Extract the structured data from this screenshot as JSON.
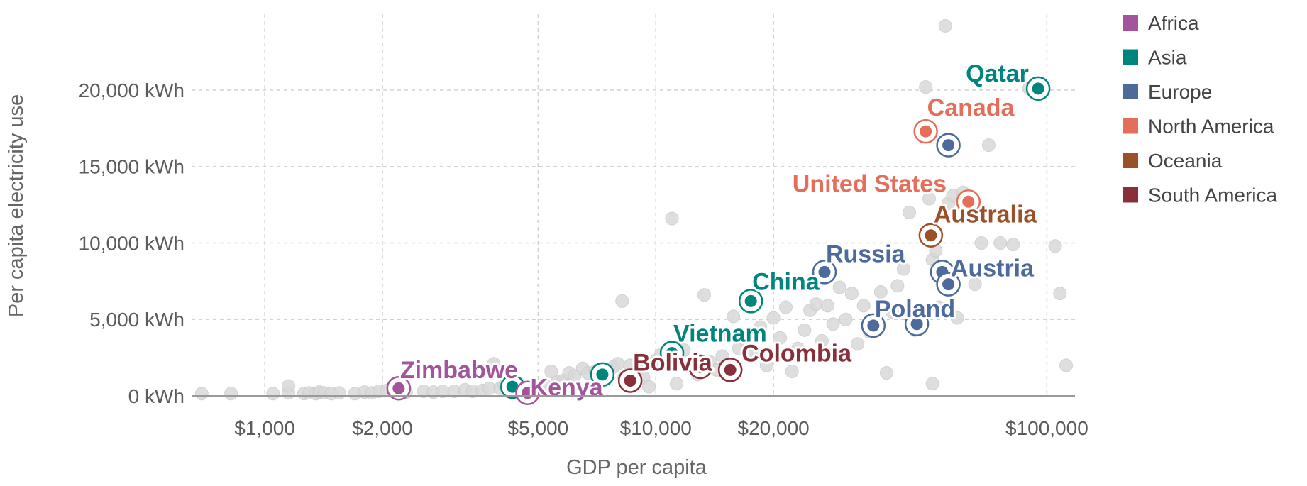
{
  "chart_data": {
    "type": "scatter",
    "title": "",
    "xlabel": "GDP per capita",
    "ylabel": "Per capita electricity use",
    "x_scale": "log",
    "xlim": [
      650,
      118000
    ],
    "ylim": [
      0,
      24500
    ],
    "x_ticks": [
      1000,
      2000,
      5000,
      10000,
      20000,
      100000
    ],
    "x_tick_labels": [
      "$1,000",
      "$2,000",
      "$5,000",
      "$10,000",
      "$20,000",
      "$100,000"
    ],
    "y_ticks": [
      0,
      5000,
      10000,
      15000,
      20000
    ],
    "y_tick_labels": [
      "0 kWh",
      "5,000 kWh",
      "10,000 kWh",
      "15,000 kWh",
      "20,000 kWh"
    ],
    "grid": true,
    "legend_position": "right",
    "colors": {
      "Africa": "#a2559c",
      "Asia": "#00847e",
      "Europe": "#4c6a9c",
      "North America": "#e56e5a",
      "Oceania": "#9a5129",
      "South America": "#883039",
      "other": "#d9d9d9"
    },
    "legend": [
      "Africa",
      "Asia",
      "Europe",
      "North America",
      "Oceania",
      "South America"
    ],
    "highlighted": [
      {
        "label": "Qatar",
        "region": "Asia",
        "x": 95000,
        "y": 20100
      },
      {
        "label": "Canada",
        "region": "North America",
        "x": 49000,
        "y": 17300
      },
      {
        "label": "",
        "region": "Europe",
        "x": 56000,
        "y": 16400
      },
      {
        "label": "United States",
        "region": "North America",
        "x": 63000,
        "y": 12700
      },
      {
        "label": "Australia",
        "region": "Oceania",
        "x": 50500,
        "y": 10500
      },
      {
        "label": "Russia",
        "region": "Europe",
        "x": 27000,
        "y": 8100
      },
      {
        "label": "Austria",
        "region": "Europe",
        "x": 54000,
        "y": 8100
      },
      {
        "label": "",
        "region": "Europe",
        "x": 56000,
        "y": 7300
      },
      {
        "label": "China",
        "region": "Asia",
        "x": 17500,
        "y": 6200
      },
      {
        "label": "Poland",
        "region": "Europe",
        "x": 36000,
        "y": 4600
      },
      {
        "label": "",
        "region": "Europe",
        "x": 46500,
        "y": 4700
      },
      {
        "label": "Vietnam",
        "region": "Asia",
        "x": 11000,
        "y": 2800
      },
      {
        "label": "",
        "region": "South America",
        "x": 15500,
        "y": 1700
      },
      {
        "label": "Colombia",
        "region": "South America",
        "x": 15500,
        "y": 1700
      },
      {
        "label": "",
        "region": "South America",
        "x": 13000,
        "y": 1900
      },
      {
        "label": "Bolivia",
        "region": "South America",
        "x": 8600,
        "y": 1000
      },
      {
        "label": "",
        "region": "Asia",
        "x": 7300,
        "y": 1400
      },
      {
        "label": "Zimbabwe",
        "region": "Africa",
        "x": 2200,
        "y": 500
      },
      {
        "label": "",
        "region": "Asia",
        "x": 4300,
        "y": 600
      },
      {
        "label": "Kenya",
        "region": "Africa",
        "x": 4700,
        "y": 200
      }
    ],
    "other_points": [
      [
        690,
        150
      ],
      [
        820,
        150
      ],
      [
        1050,
        150
      ],
      [
        1150,
        200
      ],
      [
        1150,
        650
      ],
      [
        1260,
        150
      ],
      [
        1300,
        200
      ],
      [
        1350,
        150
      ],
      [
        1380,
        250
      ],
      [
        1420,
        200
      ],
      [
        1480,
        150
      ],
      [
        1550,
        200
      ],
      [
        1700,
        150
      ],
      [
        1800,
        250
      ],
      [
        1880,
        200
      ],
      [
        1960,
        300
      ],
      [
        2050,
        350
      ],
      [
        2150,
        250
      ],
      [
        2300,
        250
      ],
      [
        2550,
        300
      ],
      [
        2700,
        250
      ],
      [
        2850,
        300
      ],
      [
        3050,
        300
      ],
      [
        3250,
        400
      ],
      [
        3400,
        300
      ],
      [
        3600,
        350
      ],
      [
        3750,
        500
      ],
      [
        3850,
        2100
      ],
      [
        4000,
        500
      ],
      [
        4100,
        700
      ],
      [
        4200,
        300
      ],
      [
        4450,
        800
      ],
      [
        4600,
        400
      ],
      [
        4900,
        600
      ],
      [
        5000,
        400
      ],
      [
        5200,
        700
      ],
      [
        5400,
        1600
      ],
      [
        5600,
        900
      ],
      [
        5800,
        1000
      ],
      [
        6000,
        1500
      ],
      [
        6200,
        1300
      ],
      [
        6500,
        1800
      ],
      [
        6700,
        1500
      ],
      [
        7000,
        1600
      ],
      [
        7200,
        1500
      ],
      [
        7500,
        1400
      ],
      [
        7800,
        1900
      ],
      [
        8000,
        2100
      ],
      [
        8200,
        6200
      ],
      [
        8300,
        1200
      ],
      [
        8600,
        2000
      ],
      [
        8800,
        900
      ],
      [
        9000,
        1700
      ],
      [
        9300,
        1200
      ],
      [
        9600,
        600
      ],
      [
        10000,
        2300
      ],
      [
        10300,
        2700
      ],
      [
        10600,
        2500
      ],
      [
        11000,
        11600
      ],
      [
        11300,
        800
      ],
      [
        11800,
        3000
      ],
      [
        12300,
        2000
      ],
      [
        12800,
        1400
      ],
      [
        13300,
        6600
      ],
      [
        13800,
        2200
      ],
      [
        14300,
        1700
      ],
      [
        14800,
        2600
      ],
      [
        15300,
        4000
      ],
      [
        15800,
        5200
      ],
      [
        16300,
        3100
      ],
      [
        17000,
        3600
      ],
      [
        17800,
        2900
      ],
      [
        18500,
        4500
      ],
      [
        19200,
        2000
      ],
      [
        20000,
        5100
      ],
      [
        20800,
        3800
      ],
      [
        21500,
        5800
      ],
      [
        22300,
        1600
      ],
      [
        23100,
        3100
      ],
      [
        24000,
        4300
      ],
      [
        24800,
        5600
      ],
      [
        25700,
        6000
      ],
      [
        26600,
        3600
      ],
      [
        27500,
        5900
      ],
      [
        28400,
        4700
      ],
      [
        29500,
        7100
      ],
      [
        30600,
        5000
      ],
      [
        31700,
        6700
      ],
      [
        32800,
        3400
      ],
      [
        34000,
        5900
      ],
      [
        35200,
        4200
      ],
      [
        36400,
        4500
      ],
      [
        37600,
        6800
      ],
      [
        38900,
        1500
      ],
      [
        40200,
        5500
      ],
      [
        41500,
        7200
      ],
      [
        43000,
        8300
      ],
      [
        44500,
        12000
      ],
      [
        46000,
        4300
      ],
      [
        47500,
        5400
      ],
      [
        49000,
        20200
      ],
      [
        50000,
        12900
      ],
      [
        51000,
        8900
      ],
      [
        52000,
        9500
      ],
      [
        53000,
        5800
      ],
      [
        54000,
        7700
      ],
      [
        55000,
        24200
      ],
      [
        56000,
        12600
      ],
      [
        57500,
        13100
      ],
      [
        59000,
        5100
      ],
      [
        61000,
        13300
      ],
      [
        63000,
        12700
      ],
      [
        65500,
        7300
      ],
      [
        68000,
        10000
      ],
      [
        71000,
        16400
      ],
      [
        76000,
        10000
      ],
      [
        82000,
        9900
      ],
      [
        90000,
        20100
      ],
      [
        105000,
        9800
      ],
      [
        108000,
        6700
      ],
      [
        112000,
        2000
      ],
      [
        51000,
        800
      ]
    ]
  }
}
